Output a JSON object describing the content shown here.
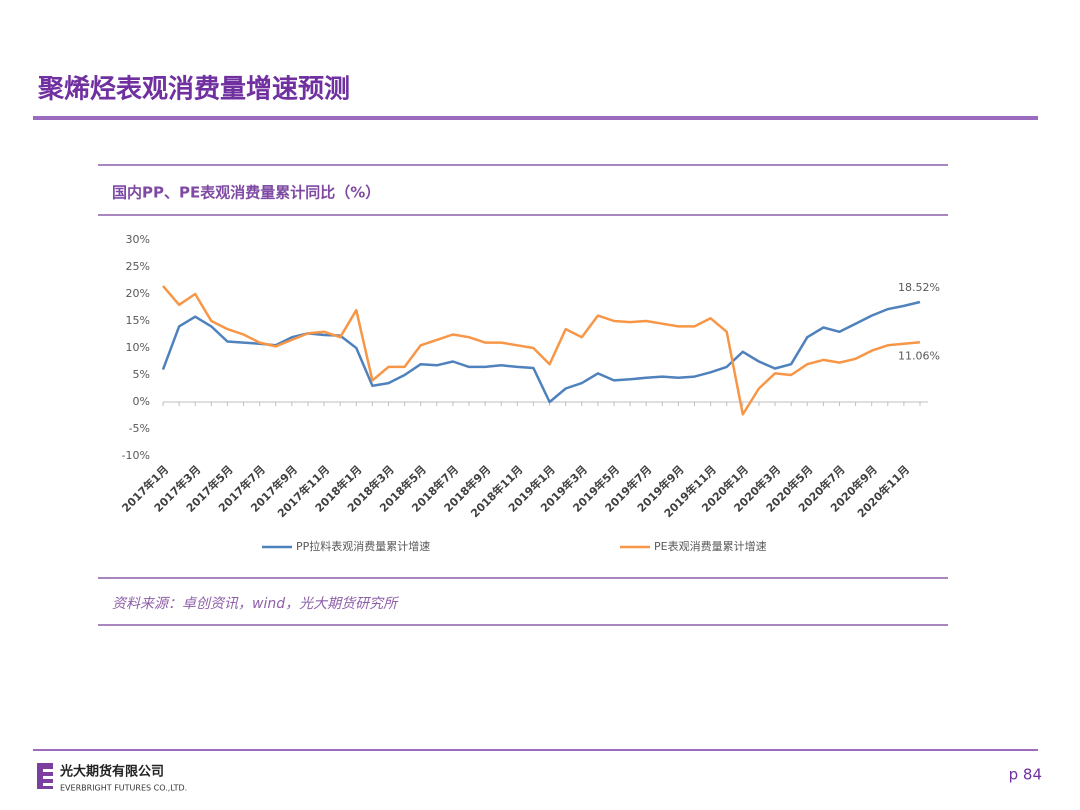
{
  "header": {
    "title": "聚烯烃表观消费量增速预测"
  },
  "chart_data": {
    "type": "line",
    "title": "国内PP、PE表观消费量累计同比（%）",
    "categories": [
      "2017年1月",
      null,
      "2017年3月",
      null,
      "2017年5月",
      null,
      "2017年7月",
      null,
      "2017年9月",
      null,
      "2017年11月",
      null,
      "2018年1月",
      null,
      "2018年3月",
      null,
      "2018年5月",
      null,
      "2018年7月",
      null,
      "2018年9月",
      null,
      "2018年11月",
      null,
      "2019年1月",
      null,
      "2019年3月",
      null,
      "2019年5月",
      null,
      "2019年7月",
      null,
      "2019年9月",
      null,
      "2019年11月",
      null,
      "2020年1月",
      null,
      "2020年3月",
      null,
      "2020年5月",
      null,
      "2020年7月",
      null,
      "2020年9月",
      null,
      "2020年11月",
      null
    ],
    "series": [
      {
        "name": "PP拉料表观消费量累计增速",
        "color": "#4f81bd",
        "values": [
          6,
          14,
          15.8,
          14,
          11.2,
          11,
          10.8,
          10.5,
          12,
          12.7,
          12.4,
          12.3,
          10,
          3,
          3.5,
          5,
          7,
          6.8,
          7.5,
          6.5,
          6.5,
          6.8,
          6.5,
          6.3,
          0,
          2.5,
          3.5,
          5.3,
          4,
          4.2,
          4.5,
          4.7,
          4.5,
          4.7,
          5.5,
          6.5,
          9.3,
          7.5,
          6.2,
          7,
          12,
          13.8,
          13,
          14.5,
          16,
          17.2,
          17.8,
          18.52
        ],
        "value_labels": [
          null,
          null,
          null,
          null,
          null,
          null,
          null,
          null,
          null,
          null,
          null,
          null,
          null,
          null,
          null,
          null,
          null,
          null,
          null,
          null,
          null,
          null,
          null,
          null,
          null,
          null,
          null,
          null,
          null,
          null,
          null,
          null,
          null,
          null,
          null,
          null,
          null,
          null,
          null,
          null,
          null,
          null,
          null,
          null,
          null,
          null,
          null,
          "18.52%"
        ]
      },
      {
        "name": "PE表观消费量累计增速",
        "color": "#f79646",
        "values": [
          21.5,
          18,
          20,
          15,
          13.5,
          12.5,
          11,
          10.3,
          11.5,
          12.7,
          13,
          12,
          17,
          4,
          6.5,
          6.5,
          10.5,
          11.5,
          12.5,
          12,
          11,
          11,
          10.5,
          10,
          7,
          13.5,
          12,
          16,
          15,
          14.8,
          15,
          14.5,
          14,
          14,
          15.5,
          13,
          -2.3,
          2.5,
          5.3,
          5,
          7,
          7.8,
          7.3,
          8,
          9.5,
          10.5,
          10.8,
          11.06
        ],
        "value_labels": [
          null,
          null,
          null,
          null,
          null,
          null,
          null,
          null,
          null,
          null,
          null,
          null,
          null,
          null,
          null,
          null,
          null,
          null,
          null,
          null,
          null,
          null,
          null,
          null,
          null,
          null,
          null,
          null,
          null,
          null,
          null,
          null,
          null,
          null,
          null,
          null,
          null,
          null,
          null,
          null,
          null,
          null,
          null,
          null,
          null,
          null,
          null,
          "11.06%"
        ]
      }
    ],
    "ylim": [
      -10,
      30
    ],
    "yticks": [
      {
        "value": -10,
        "label": "-10%"
      },
      {
        "value": -5,
        "label": "-5%"
      },
      {
        "value": 0,
        "label": "0%"
      },
      {
        "value": 5,
        "label": "5%"
      },
      {
        "value": 10,
        "label": "10%"
      },
      {
        "value": 15,
        "label": "15%"
      },
      {
        "value": 20,
        "label": "20%"
      },
      {
        "value": 25,
        "label": "25%"
      },
      {
        "value": 30,
        "label": "30%"
      }
    ],
    "grid": false,
    "legend": "bottom"
  },
  "source": "资料来源：卓创资讯，wind，光大期货研究所",
  "footer": {
    "company": "光大期货有限公司",
    "company_en": "EVERBRIGHT FUTURES CO.,LTD.",
    "page": "p 84"
  }
}
